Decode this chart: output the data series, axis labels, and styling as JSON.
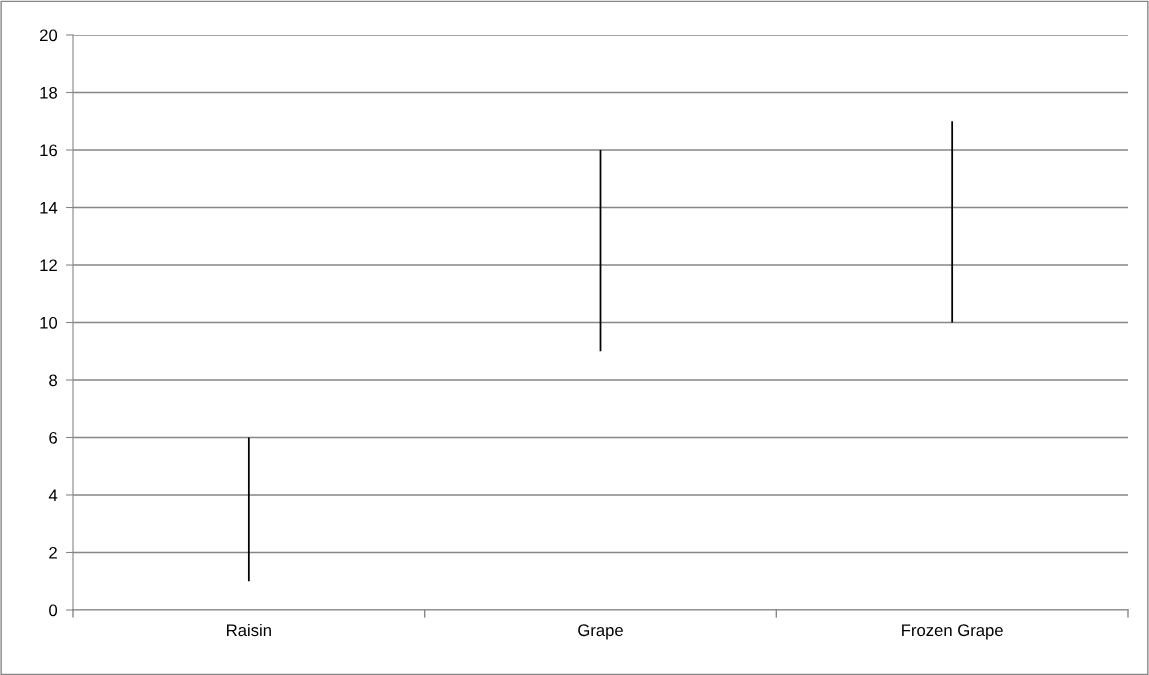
{
  "chart_data": {
    "type": "bar",
    "categories": [
      "Raisin",
      "Grape",
      "Frozen Grape"
    ],
    "base": [
      1,
      9,
      10
    ],
    "values": [
      5,
      7,
      7
    ],
    "color": "#000000",
    "ylim": [
      0,
      20
    ],
    "yticks": [
      0,
      2,
      4,
      6,
      8,
      10,
      12,
      14,
      16,
      18,
      20
    ],
    "grid": "y"
  }
}
